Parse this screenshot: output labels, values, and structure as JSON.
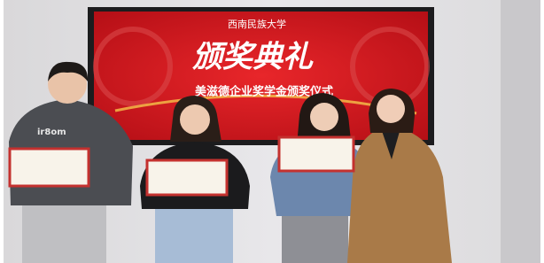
{
  "screen": {
    "university": "西南民族大学",
    "title": "颁奖典礼",
    "subtitle": "美滋德企业奖学金颁奖仪式"
  }
}
